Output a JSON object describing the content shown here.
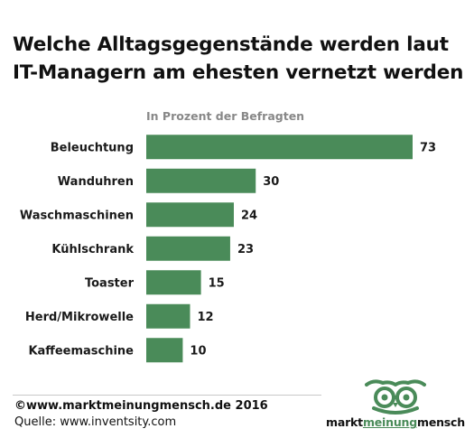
{
  "chart_data": {
    "type": "bar",
    "orientation": "horizontal",
    "title": "Welche Alltagsgegenstände werden laut IT-Managern am ehesten vernetzt werden",
    "subtitle": "In Prozent der Befragten",
    "categories": [
      "Beleuchtung",
      "Wanduhren",
      "Waschmaschinen",
      "Kühlschrank",
      "Toaster",
      "Herd/Mikrowelle",
      "Kaffeemaschine"
    ],
    "values": [
      73,
      30,
      24,
      23,
      15,
      12,
      10
    ],
    "bar_color": "#4a8b59",
    "xlim": [
      0,
      73
    ],
    "grid": false
  },
  "footer": {
    "copyright": "©www.marktmeinungmensch.de  2016",
    "source": "Quelle: www.inventsity.com"
  },
  "logo": {
    "part1": "markt",
    "part2": "meinung",
    "part3": "mensch",
    "icon": "owl-icon",
    "accent_color": "#4a8b59"
  }
}
